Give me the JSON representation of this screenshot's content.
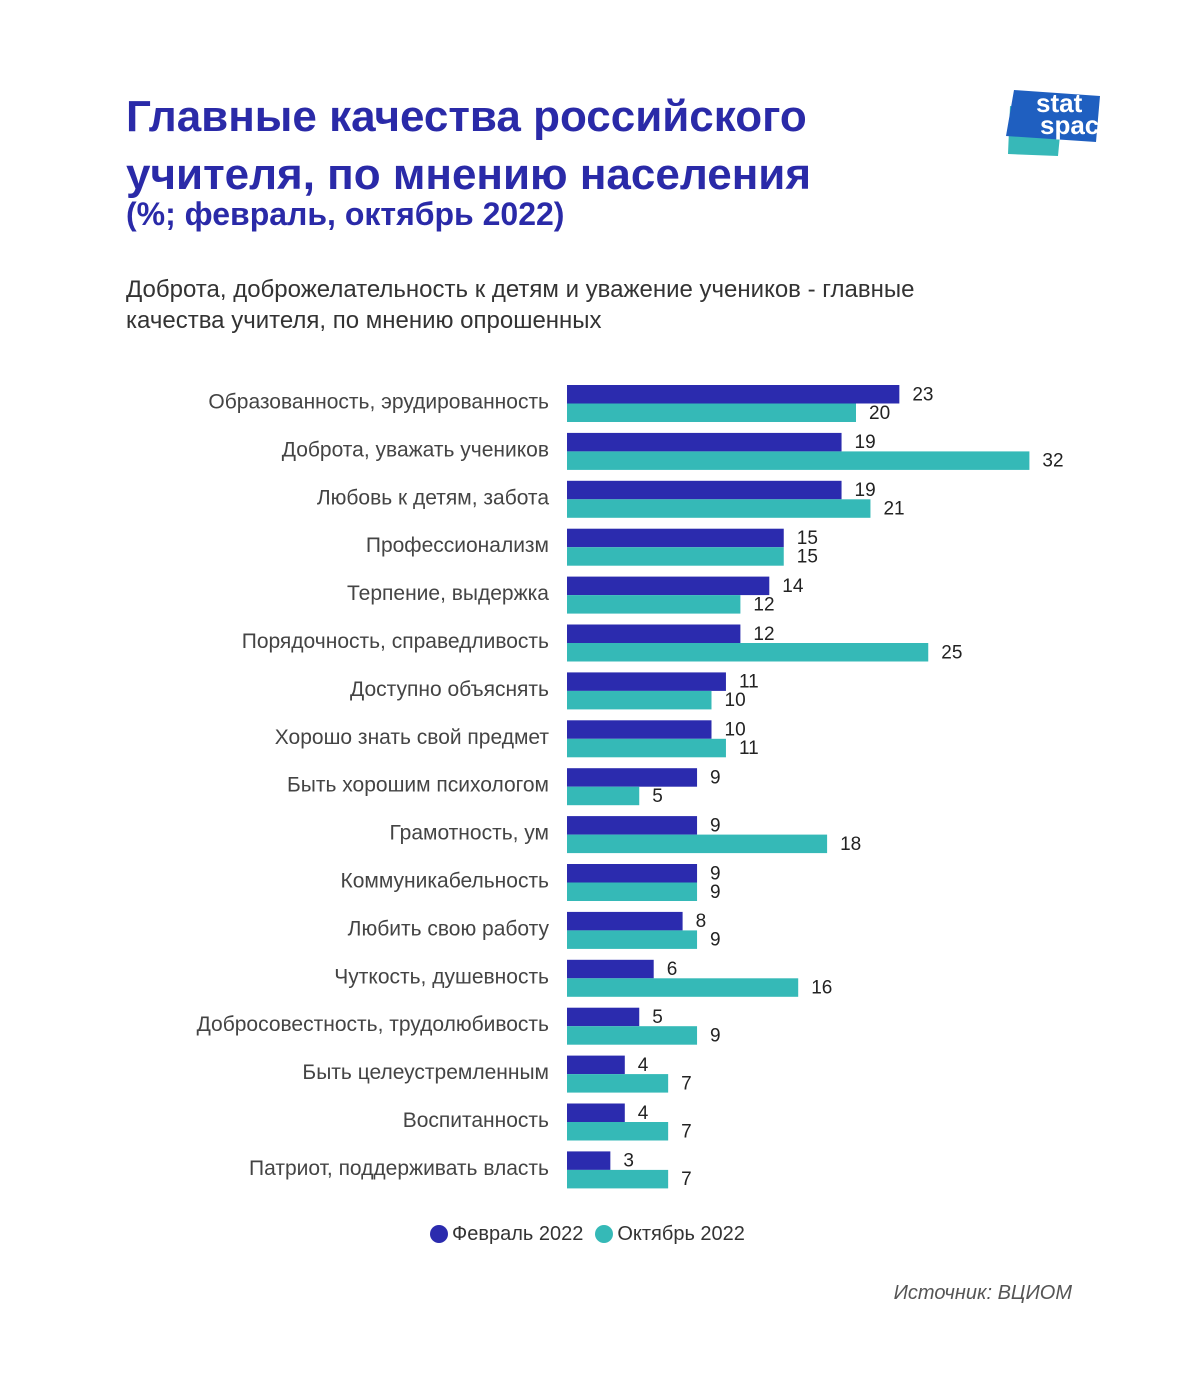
{
  "header": {
    "title_line1": "Главные качества российского",
    "title_line2": "учителя, по мнению населения",
    "unit_line": "(%; февраль, октябрь 2022)",
    "lead_line1": "Доброта, доброжелательность к детям и уважение учеников - главные",
    "lead_line2": "качества учителя, по мнению опрошенных"
  },
  "logo": {
    "line1": "stat",
    "line2": "space"
  },
  "footer": {
    "source": "Источник: ВЦИОМ"
  },
  "colors": {
    "title": "#2a2aa8",
    "feb": "#2b2bae",
    "oct": "#35b9b7",
    "logo_blue": "#1f5fc0",
    "logo_teal": "#37b8b8"
  },
  "chart_data": {
    "type": "bar",
    "orientation": "horizontal",
    "title": "Главные качества российского учителя, по мнению населения",
    "subtitle": "(%; февраль, октябрь 2022)",
    "xlim": [
      0,
      35
    ],
    "grid": false,
    "legend_position": "bottom-center",
    "categories": [
      "Образованность, эрудированность",
      "Доброта, уважать учеников",
      "Любовь к детям, забота",
      "Профессионализм",
      "Терпение, выдержка",
      "Порядочность, справедливость",
      "Доступно объяснять",
      "Хорошо знать свой предмет",
      "Быть хорошим психологом",
      "Грамотность, ум",
      "Коммуникабельность",
      "Любить свою работу",
      "Чуткость, душевность",
      "Добросовестность, трудолюбивость",
      "Быть целеустремленным",
      "Воспитанность",
      "Патриот, поддерживать власть"
    ],
    "series": [
      {
        "name": "Февраль 2022",
        "color": "#2b2bae",
        "values": [
          23,
          19,
          19,
          15,
          14,
          12,
          11,
          10,
          9,
          9,
          9,
          8,
          6,
          5,
          4,
          4,
          3
        ]
      },
      {
        "name": "Октябрь 2022",
        "color": "#35b9b7",
        "values": [
          20,
          32,
          21,
          15,
          12,
          25,
          10,
          11,
          5,
          18,
          9,
          9,
          16,
          9,
          7,
          7,
          7
        ]
      }
    ]
  }
}
